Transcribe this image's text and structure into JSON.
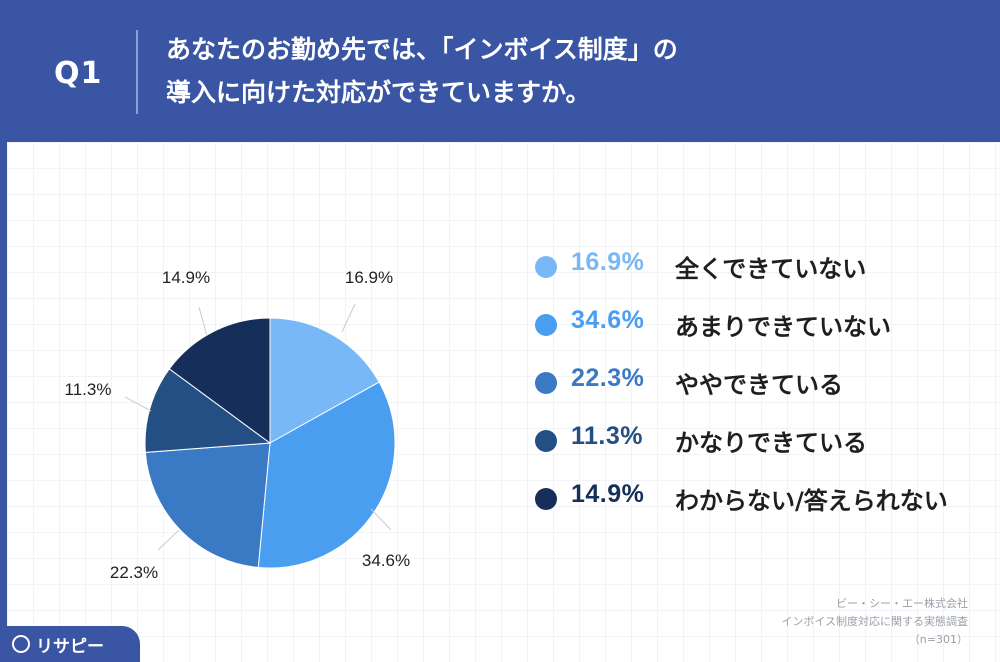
{
  "header": {
    "question_label": "Q1",
    "question_line1": "あなたのお勤め先では、「インボイス制度」の",
    "question_line2": "導入に向けた対応ができていますか。"
  },
  "chart_data": {
    "type": "pie",
    "title": "あなたのお勤め先では、「インボイス制度」の導入に向けた対応ができていますか。",
    "slices": [
      {
        "label": "全くできていない",
        "value": 16.9,
        "value_label": "16.9%",
        "color": "#78b8f6"
      },
      {
        "label": "あまりできていない",
        "value": 34.6,
        "value_label": "34.6%",
        "color": "#4a9ef0"
      },
      {
        "label": "ややできている",
        "value": 22.3,
        "value_label": "22.3%",
        "color": "#3a79c4"
      },
      {
        "label": "かなりできている",
        "value": 11.3,
        "value_label": "11.3%",
        "color": "#234f85"
      },
      {
        "label": "わからない/答えられない",
        "value": 14.9,
        "value_label": "14.9%",
        "color": "#162f5a"
      }
    ],
    "legend_position": "right"
  },
  "source": {
    "line1": "ビー・シー・エー株式会社",
    "line2": "インボイス制度対応に関する実態調査",
    "line3": "（n=301）"
  },
  "logo": {
    "text": "リサピー",
    "icon": "pin-icon"
  },
  "colors": {
    "header_bg": "#3a55a4"
  }
}
